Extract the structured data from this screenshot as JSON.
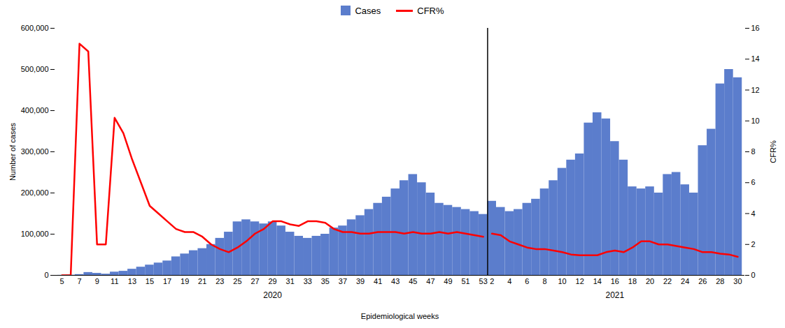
{
  "chart_data": {
    "type": "bar",
    "xlabel": "Epidemiological weeks",
    "ylabel": "Number of cases",
    "y2label": "CFR%",
    "categories": [
      "5",
      null,
      "7",
      null,
      "9",
      null,
      "11",
      null,
      "13",
      null,
      "15",
      null,
      "17",
      null,
      "19",
      null,
      "21",
      null,
      "23",
      null,
      "25",
      null,
      "27",
      null,
      "29",
      null,
      "31",
      null,
      "33",
      null,
      "35",
      null,
      "37",
      null,
      "39",
      null,
      "41",
      null,
      "43",
      null,
      "45",
      null,
      "47",
      null,
      "49",
      null,
      "51",
      null,
      "53",
      "2",
      null,
      "4",
      null,
      "6",
      null,
      "8",
      null,
      "10",
      null,
      "12",
      null,
      "14",
      null,
      "16",
      null,
      "18",
      null,
      "20",
      null,
      "22",
      null,
      "24",
      null,
      "26",
      null,
      "28",
      null,
      "30"
    ],
    "category_groups": [
      "2020",
      "2020",
      "2020",
      "2020",
      "2020",
      "2020",
      "2020",
      "2020",
      "2020",
      "2020",
      "2020",
      "2020",
      "2020",
      "2020",
      "2020",
      "2020",
      "2020",
      "2020",
      "2020",
      "2020",
      "2020",
      "2020",
      "2020",
      "2020",
      "2020",
      "2020",
      "2020",
      "2020",
      "2020",
      "2020",
      "2020",
      "2020",
      "2020",
      "2020",
      "2020",
      "2020",
      "2020",
      "2020",
      "2020",
      "2020",
      "2020",
      "2020",
      "2020",
      "2020",
      "2020",
      "2020",
      "2020",
      "2020",
      "2020",
      "2021",
      "2021",
      "2021",
      "2021",
      "2021",
      "2021",
      "2021",
      "2021",
      "2021",
      "2021",
      "2021",
      "2021",
      "2021",
      "2021",
      "2021",
      "2021",
      "2021",
      "2021",
      "2021",
      "2021",
      "2021",
      "2021",
      "2021",
      "2021",
      "2021",
      "2021",
      "2021",
      "2021",
      "2021"
    ],
    "series": [
      {
        "name": "Cases",
        "type": "bar",
        "color": "#5b7dcc",
        "values": [
          200,
          500,
          2000,
          7000,
          5000,
          3000,
          8000,
          10000,
          15000,
          20000,
          25000,
          30000,
          35000,
          45000,
          52000,
          60000,
          65000,
          75000,
          90000,
          105000,
          130000,
          135000,
          130000,
          125000,
          130000,
          120000,
          105000,
          95000,
          90000,
          95000,
          100000,
          115000,
          120000,
          135000,
          145000,
          160000,
          175000,
          190000,
          210000,
          230000,
          245000,
          225000,
          200000,
          175000,
          170000,
          165000,
          160000,
          155000,
          148000,
          180000,
          165000,
          155000,
          160000,
          175000,
          185000,
          210000,
          230000,
          260000,
          280000,
          295000,
          370000,
          395000,
          380000,
          325000,
          280000,
          215000,
          210000,
          215000,
          200000,
          245000,
          250000,
          220000,
          200000,
          315000,
          355000,
          465000,
          500000,
          480000
        ]
      },
      {
        "name": "CFR%",
        "type": "line",
        "axis": "y2",
        "color": "#ff0000",
        "values": [
          0.0,
          0.0,
          15.0,
          14.5,
          2.0,
          2.0,
          10.2,
          9.2,
          7.5,
          6.0,
          4.5,
          4.0,
          3.5,
          3.0,
          2.8,
          2.8,
          2.5,
          2.0,
          1.7,
          1.5,
          1.8,
          2.2,
          2.7,
          3.0,
          3.5,
          3.5,
          3.3,
          3.2,
          3.5,
          3.5,
          3.4,
          3.0,
          2.8,
          2.8,
          2.7,
          2.7,
          2.8,
          2.8,
          2.8,
          2.7,
          2.8,
          2.7,
          2.7,
          2.8,
          2.7,
          2.8,
          2.7,
          2.6,
          2.5,
          2.7,
          2.6,
          2.2,
          2.0,
          1.8,
          1.7,
          1.7,
          1.6,
          1.5,
          1.35,
          1.3,
          1.3,
          1.3,
          1.5,
          1.6,
          1.5,
          1.8,
          2.2,
          2.2,
          2.0,
          2.0,
          1.9,
          1.8,
          1.7,
          1.5,
          1.5,
          1.4,
          1.35,
          1.2
        ]
      }
    ],
    "ylim": [
      0,
      600000
    ],
    "yticks": [
      0,
      {
        "value": 100000,
        "label": "100,000"
      },
      {
        "value": 200000,
        "label": "200,000"
      },
      {
        "value": 300000,
        "label": "300,000"
      },
      {
        "value": 400000,
        "label": "400,000"
      },
      {
        "value": 500000,
        "label": "500,000"
      },
      {
        "value": 600000,
        "label": "600,000"
      }
    ],
    "y2lim": [
      0,
      16
    ],
    "y2ticks": [
      0,
      2,
      4,
      6,
      8,
      10,
      12,
      14,
      16
    ],
    "legend": "top",
    "grid": false
  }
}
